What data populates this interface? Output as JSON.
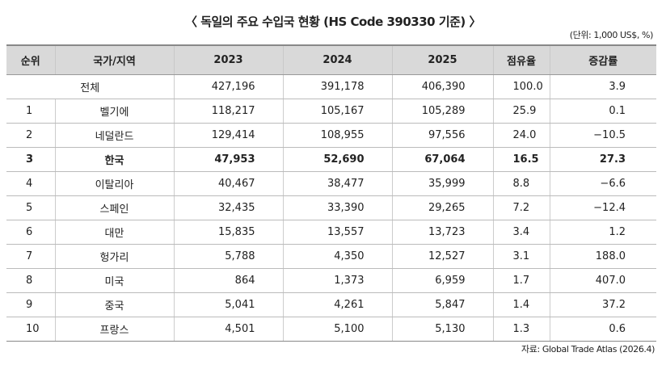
{
  "title": "〈 독일의 주요 수입국 현황 (HS Code 390330 기준) 〉",
  "unit": "(단위: 1,000 US$, %)",
  "table": {
    "header": [
      "순위",
      "국가/지역",
      "2023",
      "2024",
      "2025",
      "점유율",
      "증감률"
    ],
    "total": [
      "전체",
      "427,196",
      "391,178",
      "406,390",
      "100.0",
      "3.9"
    ],
    "rows": [
      [
        "1",
        "벨기에",
        "118,217",
        "105,167",
        "105,289",
        "25.9",
        "0.1"
      ],
      [
        "2",
        "네덜란드",
        "129,414",
        "108,955",
        "97,556",
        "24.0",
        "−10.5"
      ],
      [
        "3",
        "한국",
        "47,953",
        "52,690",
        "67,064",
        "16.5",
        "27.3"
      ],
      [
        "4",
        "이탈리아",
        "40,467",
        "38,477",
        "35,999",
        "8.8",
        "−6.6"
      ],
      [
        "5",
        "스페인",
        "32,435",
        "33,390",
        "29,265",
        "7.2",
        "−12.4"
      ],
      [
        "6",
        "대만",
        "15,835",
        "13,557",
        "13,723",
        "3.4",
        "1.2"
      ],
      [
        "7",
        "헝가리",
        "5,788",
        "4,350",
        "12,527",
        "3.1",
        "188.0"
      ],
      [
        "8",
        "미국",
        "864",
        "1,373",
        "6,959",
        "1.7",
        "407.0"
      ],
      [
        "9",
        "중국",
        "5,041",
        "4,261",
        "5,847",
        "1.4",
        "37.2"
      ],
      [
        "10",
        "프랑스",
        "4,501",
        "5,100",
        "5,130",
        "1.3",
        "0.6"
      ]
    ]
  },
  "source": "자료: Global Trade Atlas (2026.4)"
}
